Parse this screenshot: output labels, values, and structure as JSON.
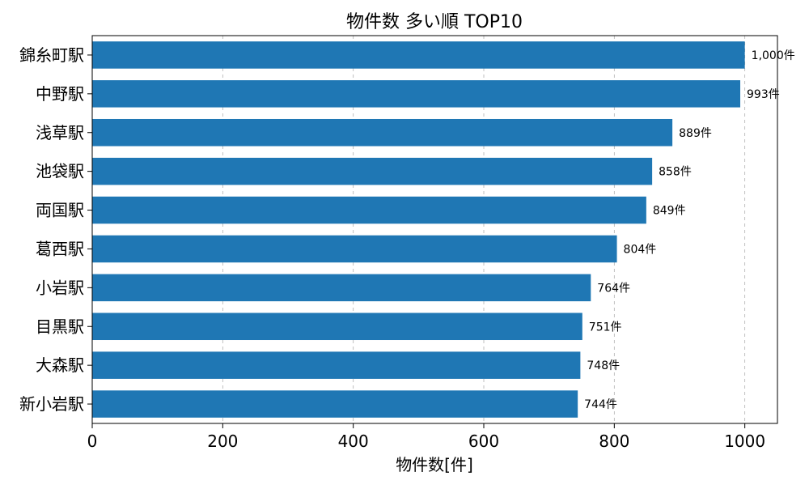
{
  "chart_data": {
    "type": "bar",
    "orientation": "horizontal",
    "title": "物件数 多い順 TOP10",
    "xlabel": "物件数[件]",
    "ylabel": "",
    "categories": [
      "錦糸町駅",
      "中野駅",
      "浅草駅",
      "池袋駅",
      "両国駅",
      "葛西駅",
      "小岩駅",
      "目黒駅",
      "大森駅",
      "新小岩駅"
    ],
    "values": [
      1000,
      993,
      889,
      858,
      849,
      804,
      764,
      751,
      748,
      744
    ],
    "data_labels": [
      "1,000件",
      "993件",
      "889件",
      "858件",
      "849件",
      "804件",
      "764件",
      "751件",
      "748件",
      "744件"
    ],
    "xlim": [
      0,
      1050
    ],
    "xticks": [
      0,
      200,
      400,
      600,
      800,
      1000
    ],
    "xtick_labels": [
      "0",
      "200",
      "400",
      "600",
      "800",
      "1000"
    ],
    "grid": "x-dashed",
    "colors": {
      "bar": "#1f77b4"
    }
  }
}
